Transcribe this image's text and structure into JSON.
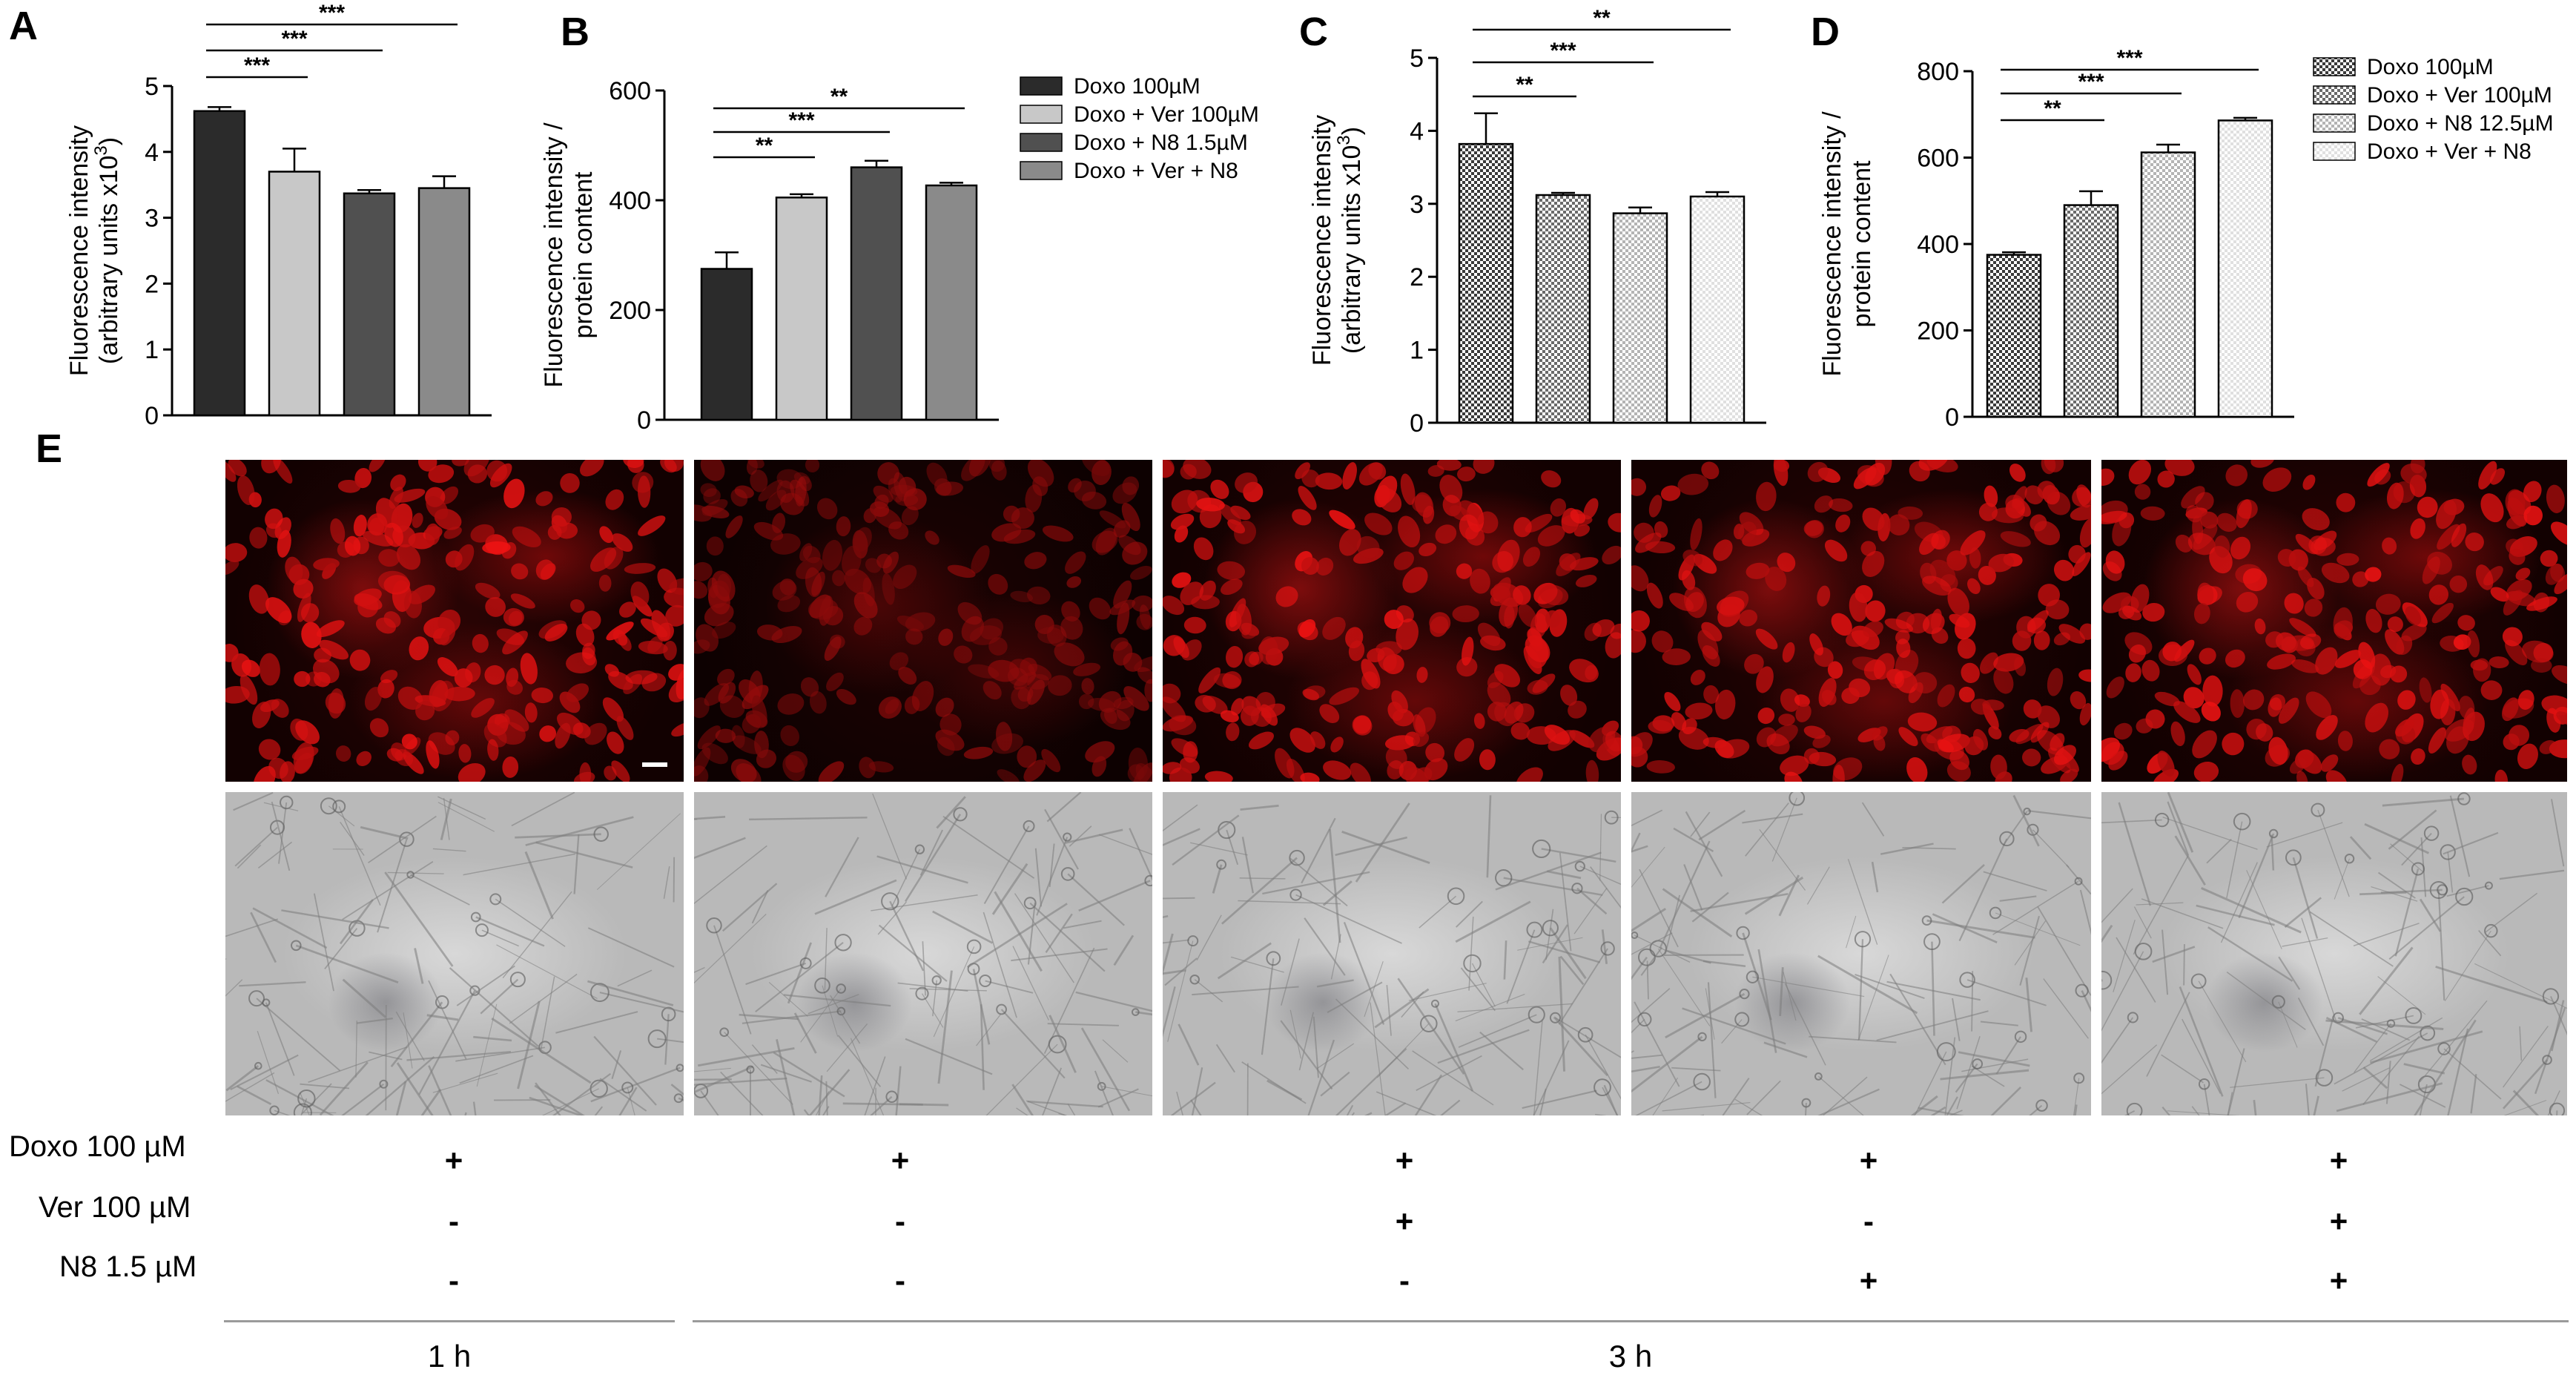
{
  "panels": {
    "A": "A",
    "B": "B",
    "C": "C",
    "D": "D",
    "E": "E"
  },
  "chart_data": [
    {
      "id": "A",
      "type": "bar",
      "ylabel_line1": "Fluorescence intensity",
      "ylabel_line2": "(arbitrary units x10",
      "ylabel_sup": "3",
      "ylabel_close": ")",
      "ylim": [
        0,
        5
      ],
      "yticks": [
        "0",
        "1",
        "2",
        "3",
        "4",
        "5"
      ],
      "categories": [
        "Doxo 100µM",
        "Doxo + Ver 100µM",
        "Doxo + N8 1.5µM",
        "Doxo + Ver + N8"
      ],
      "values": [
        4.62,
        3.7,
        3.37,
        3.45
      ],
      "errors": [
        0.06,
        0.35,
        0.05,
        0.18
      ],
      "colors": [
        "#2b2b2b",
        "#c8c8c8",
        "#505050",
        "#8a8a8a"
      ],
      "pattern": "solid",
      "significance": [
        {
          "from": 0,
          "to": 1,
          "label": "***"
        },
        {
          "from": 0,
          "to": 2,
          "label": "***"
        },
        {
          "from": 0,
          "to": 3,
          "label": "***"
        }
      ]
    },
    {
      "id": "B",
      "type": "bar",
      "ylabel_line1": "Fluorescence intensity /",
      "ylabel_line2": "protein content",
      "ylim": [
        0,
        600
      ],
      "yticks": [
        "0",
        "200",
        "400",
        "600"
      ],
      "categories": [
        "Doxo 100µM",
        "Doxo + Ver 100µM",
        "Doxo + N8 1.5µM",
        "Doxo + Ver + N8"
      ],
      "values": [
        275,
        405,
        460,
        427
      ],
      "errors": [
        30,
        6,
        12,
        5
      ],
      "colors": [
        "#2b2b2b",
        "#c8c8c8",
        "#505050",
        "#8a8a8a"
      ],
      "pattern": "solid",
      "significance": [
        {
          "from": 0,
          "to": 1,
          "label": "**"
        },
        {
          "from": 0,
          "to": 2,
          "label": "***"
        },
        {
          "from": 0,
          "to": 3,
          "label": "**"
        }
      ],
      "legend": [
        "Doxo 100µM",
        "Doxo + Ver 100µM",
        "Doxo + N8 1.5µM",
        "Doxo + Ver + N8"
      ]
    },
    {
      "id": "C",
      "type": "bar",
      "ylabel_line1": "Fluorescence intensity",
      "ylabel_line2": "(arbitrary units x10",
      "ylabel_sup": "3",
      "ylabel_close": ")",
      "ylim": [
        0,
        5
      ],
      "yticks": [
        "0",
        "1",
        "2",
        "3",
        "4",
        "5"
      ],
      "categories": [
        "Doxo 100µM",
        "Doxo + Ver 100µM",
        "Doxo + N8 12.5µM",
        "Doxo + Ver + N8"
      ],
      "values": [
        3.82,
        3.12,
        2.87,
        3.1
      ],
      "errors": [
        0.42,
        0.03,
        0.08,
        0.06
      ],
      "colors": [
        "#3a3a3a",
        "#6a6a6a",
        "#b4b4b4",
        "#e0e0e0"
      ],
      "pattern": "checker",
      "significance": [
        {
          "from": 0,
          "to": 1,
          "label": "**"
        },
        {
          "from": 0,
          "to": 2,
          "label": "***"
        },
        {
          "from": 0,
          "to": 3,
          "label": "**"
        }
      ]
    },
    {
      "id": "D",
      "type": "bar",
      "ylabel_line1": "Fluorescence intensity /",
      "ylabel_line2": "protein content",
      "ylim": [
        0,
        800
      ],
      "yticks": [
        "0",
        "200",
        "400",
        "600",
        "800"
      ],
      "categories": [
        "Doxo 100µM",
        "Doxo + Ver 100µM",
        "Doxo + N8 12.5µM",
        "Doxo + Ver + N8"
      ],
      "values": [
        375,
        490,
        612,
        686
      ],
      "errors": [
        6,
        32,
        18,
        6
      ],
      "colors": [
        "#3a3a3a",
        "#6a6a6a",
        "#b4b4b4",
        "#e0e0e0"
      ],
      "pattern": "checker",
      "significance": [
        {
          "from": 0,
          "to": 1,
          "label": "**"
        },
        {
          "from": 0,
          "to": 2,
          "label": "***"
        },
        {
          "from": 0,
          "to": 3,
          "label": "***"
        }
      ],
      "legend": [
        "Doxo 100µM",
        "Doxo + Ver 100µM",
        "Doxo + N8 12.5µM",
        "Doxo + Ver + N8"
      ]
    }
  ],
  "conditions": {
    "rows": [
      {
        "label": "Doxo 100 µM",
        "values": [
          "+",
          "+",
          "+",
          "+",
          "+"
        ]
      },
      {
        "label": "Ver 100 µM",
        "values": [
          "-",
          "-",
          "+",
          "-",
          "+"
        ]
      },
      {
        "label": "N8 1.5 µM",
        "values": [
          "-",
          "-",
          "-",
          "+",
          "+"
        ]
      }
    ],
    "time_groups": [
      {
        "label": "1 h",
        "columns": [
          0
        ]
      },
      {
        "label": "3 h",
        "columns": [
          1,
          2,
          3,
          4
        ]
      }
    ]
  }
}
